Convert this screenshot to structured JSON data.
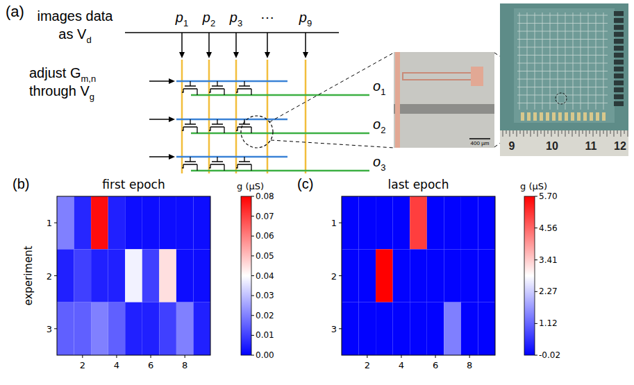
{
  "figure": {
    "panel_a": {
      "label": "(a)",
      "input_label": [
        "images data",
        {
          "main": "as V",
          "sub": "d"
        }
      ],
      "inputs": [
        {
          "main": "p",
          "sub": "1"
        },
        {
          "main": "p",
          "sub": "2"
        },
        {
          "main": "p",
          "sub": "3"
        },
        "⋯",
        {
          "main": "p",
          "sub": "9"
        }
      ],
      "weight_label": [
        {
          "main": "adjust G",
          "sub": "m,n"
        },
        {
          "main": "through V",
          "sub": "g"
        }
      ],
      "outputs": [
        {
          "main": "o",
          "sub": "1"
        },
        {
          "main": "o",
          "sub": "2"
        },
        {
          "main": "o",
          "sub": "3"
        }
      ],
      "scale_bar": "400 µm",
      "ruler": [
        "9",
        "10",
        "11",
        "12"
      ]
    }
  },
  "chart_data": [
    {
      "panel": "(b)",
      "type": "heatmap",
      "title": "first epoch",
      "y_label": "experiment",
      "xlim": [
        0.5,
        9.5
      ],
      "ylim": [
        0.5,
        3.5
      ],
      "xticks": [
        2,
        4,
        6,
        8
      ],
      "yticks": [
        1,
        2,
        3
      ],
      "cells": [
        [
          0.02,
          0.006,
          0.078,
          0.005,
          0.002,
          0.002,
          0.002,
          0.002,
          0.002
        ],
        [
          0.005,
          0.01,
          0.005,
          0.005,
          0.038,
          0.01,
          0.045,
          0.002,
          0.002
        ],
        [
          0.015,
          0.015,
          0.02,
          0.015,
          0.005,
          0.005,
          0.01,
          0.02,
          0.005
        ]
      ],
      "colorbar": {
        "label": "g (μS)",
        "range": [
          0,
          0.08
        ],
        "ticks": [
          {
            "value": 0,
            "label": "0.00"
          },
          0.01,
          0.02,
          0.03,
          0.04,
          0.05,
          0.06,
          0.07,
          0.08
        ]
      }
    },
    {
      "panel": "(c)",
      "type": "heatmap",
      "title": "last epoch",
      "xlim": [
        0.5,
        9.5
      ],
      "ylim": [
        0.5,
        3.5
      ],
      "xticks": [
        2,
        4,
        6,
        8
      ],
      "yticks": [
        1,
        2,
        3
      ],
      "cells": [
        [
          0,
          0,
          0,
          0,
          5.0,
          0,
          0,
          0,
          0
        ],
        [
          0,
          0,
          5.7,
          0,
          0,
          0,
          0,
          0,
          0
        ],
        [
          0,
          0,
          0,
          0,
          0,
          0,
          1.4,
          0,
          0
        ]
      ],
      "colorbar": {
        "label": "g (μS)",
        "range": [
          -0.02,
          5.7
        ],
        "ticks": [
          -0.02,
          1.12,
          2.27,
          3.41,
          4.56,
          {
            "value": 5.7,
            "label": "5.70"
          }
        ]
      }
    }
  ]
}
